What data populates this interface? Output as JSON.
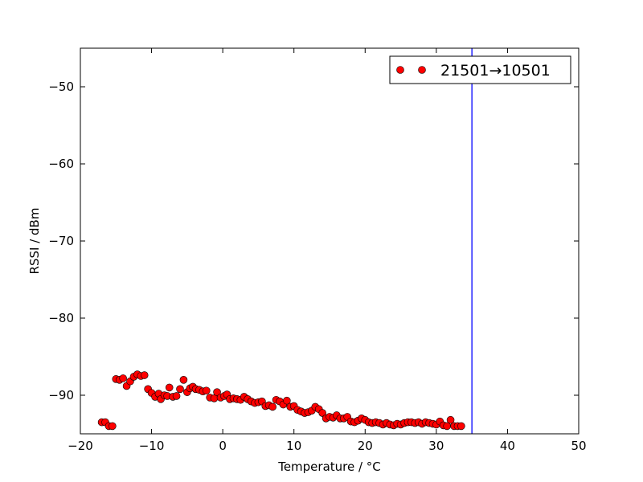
{
  "chart_data": {
    "type": "scatter",
    "xlabel": "Temperature / °C",
    "ylabel": "RSSI / dBm",
    "xlim": [
      -20,
      50
    ],
    "ylim": [
      -95,
      -45
    ],
    "xticks": [
      -20,
      -10,
      0,
      10,
      20,
      30,
      40,
      50
    ],
    "yticks": [
      -90,
      -80,
      -70,
      -60,
      -50
    ],
    "xtick_labels": [
      "−20",
      "−10",
      "0",
      "10",
      "20",
      "30",
      "40",
      "50"
    ],
    "ytick_labels": [
      "−90",
      "−80",
      "−70",
      "−60",
      "−50"
    ],
    "grid": false,
    "legend_position": "top-right",
    "marker_color": "#ff0000",
    "marker_edge_color": "#000000",
    "vline": {
      "x": 35,
      "color": "#0000ff"
    },
    "series": [
      {
        "name": "21501→10501",
        "x": [
          -17.0,
          -16.5,
          -16.0,
          -15.5,
          -15.0,
          -14.5,
          -14.0,
          -13.5,
          -13.0,
          -12.5,
          -12.0,
          -11.5,
          -11.0,
          -10.5,
          -10.0,
          -9.5,
          -9.0,
          -8.7,
          -8.2,
          -7.8,
          -7.5,
          -7.0,
          -6.5,
          -6.0,
          -5.5,
          -5.0,
          -4.6,
          -4.2,
          -3.8,
          -3.3,
          -2.8,
          -2.3,
          -1.8,
          -1.2,
          -0.8,
          -0.3,
          0.2,
          0.6,
          1.0,
          1.5,
          2.0,
          2.5,
          3.0,
          3.5,
          4.0,
          4.5,
          5.0,
          5.5,
          6.0,
          6.5,
          7.0,
          7.5,
          8.0,
          8.5,
          9.0,
          9.5,
          10.0,
          10.5,
          11.0,
          11.5,
          12.0,
          12.5,
          13.0,
          13.5,
          14.0,
          14.5,
          15.0,
          15.5,
          16.0,
          16.5,
          17.0,
          17.5,
          18.0,
          18.5,
          19.0,
          19.5,
          20.0,
          20.5,
          21.0,
          21.5,
          22.0,
          22.5,
          23.0,
          23.5,
          24.0,
          24.5,
          25.0,
          25.5,
          26.0,
          26.5,
          27.0,
          27.5,
          28.0,
          28.5,
          29.0,
          29.5,
          30.0,
          30.5,
          31.0,
          31.5,
          32.0,
          32.5,
          33.0,
          33.5
        ],
        "y": [
          -93.5,
          -93.5,
          -94.0,
          -94.0,
          -87.9,
          -88.0,
          -87.8,
          -88.8,
          -88.2,
          -87.6,
          -87.3,
          -87.5,
          -87.4,
          -89.2,
          -89.7,
          -90.2,
          -89.8,
          -90.5,
          -90.0,
          -90.1,
          -89.0,
          -90.2,
          -90.1,
          -89.2,
          -88.0,
          -89.6,
          -89.1,
          -88.9,
          -89.2,
          -89.3,
          -89.5,
          -89.4,
          -90.3,
          -90.4,
          -89.6,
          -90.3,
          -90.1,
          -89.9,
          -90.5,
          -90.4,
          -90.5,
          -90.6,
          -90.2,
          -90.5,
          -90.8,
          -91.0,
          -90.9,
          -90.8,
          -91.4,
          -91.3,
          -91.5,
          -90.6,
          -90.8,
          -91.2,
          -90.7,
          -91.5,
          -91.4,
          -91.9,
          -92.1,
          -92.3,
          -92.2,
          -92.0,
          -91.5,
          -91.8,
          -92.3,
          -93.0,
          -92.8,
          -92.9,
          -92.6,
          -93.0,
          -93.0,
          -92.8,
          -93.4,
          -93.5,
          -93.3,
          -93.0,
          -93.2,
          -93.5,
          -93.6,
          -93.5,
          -93.6,
          -93.8,
          -93.6,
          -93.8,
          -93.9,
          -93.7,
          -93.8,
          -93.6,
          -93.5,
          -93.5,
          -93.6,
          -93.5,
          -93.7,
          -93.5,
          -93.6,
          -93.7,
          -93.8,
          -93.4,
          -93.9,
          -94.0,
          -93.2,
          -94.0,
          -94.0,
          -94.0
        ]
      }
    ]
  }
}
